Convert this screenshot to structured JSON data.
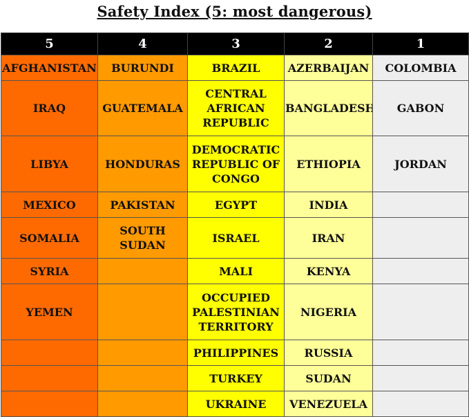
{
  "title": "Safety Index (5: most dangerous)",
  "colors": {
    "level_5": "#ff6a00",
    "level_4": "#ff9a00",
    "level_3": "#ffff00",
    "level_2": "#ffff99",
    "level_1": "#eeeeee",
    "header_bg": "#000000",
    "header_text": "#ffffff"
  },
  "columns": [
    "5",
    "4",
    "3",
    "2",
    "1"
  ],
  "rows": [
    [
      "AFGHANISTAN",
      "BURUNDI",
      "BRAZIL",
      "AZERBAIJAN",
      "COLOMBIA"
    ],
    [
      "IRAQ",
      "GUATEMALA",
      "CENTRAL AFRICAN REPUBLIC",
      "BANGLADESH",
      "GABON"
    ],
    [
      "LIBYA",
      "HONDURAS",
      "DEMOCRATIC REPUBLIC OF CONGO",
      "ETHIOPIA",
      "JORDAN"
    ],
    [
      "MEXICO",
      "PAKISTAN",
      "EGYPT",
      "INDIA",
      ""
    ],
    [
      "SOMALIA",
      "SOUTH SUDAN",
      "ISRAEL",
      "IRAN",
      ""
    ],
    [
      "SYRIA",
      "",
      "MALI",
      "KENYA",
      ""
    ],
    [
      "YEMEN",
      "",
      "OCCUPIED PALESTINIAN TERRITORY",
      "NIGERIA",
      ""
    ],
    [
      "",
      "",
      "PHILIPPINES",
      "RUSSIA",
      ""
    ],
    [
      "",
      "",
      "TURKEY",
      "SUDAN",
      ""
    ],
    [
      "",
      "",
      "UKRAINE",
      "VENEZUELA",
      ""
    ]
  ]
}
